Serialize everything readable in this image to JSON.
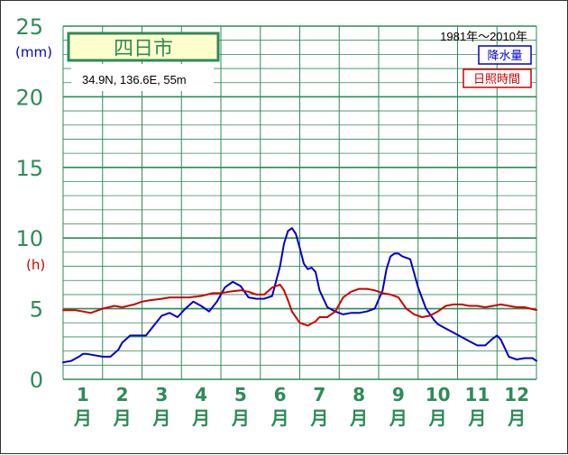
{
  "chart_data": {
    "type": "line",
    "title": "四日市",
    "location": "34.9N,   136.6E,   55m",
    "period": "1981年〜2010年",
    "y_unit_precip": "(mm)",
    "y_unit_sun": "(h)",
    "ylim": [
      0,
      25
    ],
    "y_ticks": [
      "0",
      "5",
      "10",
      "15",
      "20",
      "25"
    ],
    "x_ticks": [
      {
        "num": "1",
        "unit": "月"
      },
      {
        "num": "2",
        "unit": "月"
      },
      {
        "num": "3",
        "unit": "月"
      },
      {
        "num": "4",
        "unit": "月"
      },
      {
        "num": "5",
        "unit": "月"
      },
      {
        "num": "6",
        "unit": "月"
      },
      {
        "num": "7",
        "unit": "月"
      },
      {
        "num": "8",
        "unit": "月"
      },
      {
        "num": "9",
        "unit": "月"
      },
      {
        "num": "10",
        "unit": "月"
      },
      {
        "num": "11",
        "unit": "月"
      },
      {
        "num": "12",
        "unit": "月"
      }
    ],
    "x_range": [
      0.5,
      12.5
    ],
    "grid": true,
    "legend_position": "top-right",
    "series": [
      {
        "name": "降水量",
        "color": "#0000cc",
        "x": [
          0.5,
          0.7,
          0.9,
          1.0,
          1.1,
          1.3,
          1.5,
          1.7,
          1.9,
          2.0,
          2.2,
          2.4,
          2.6,
          2.8,
          3.0,
          3.2,
          3.4,
          3.6,
          3.8,
          4.0,
          4.2,
          4.4,
          4.6,
          4.8,
          5.0,
          5.2,
          5.4,
          5.6,
          5.8,
          6.0,
          6.1,
          6.2,
          6.3,
          6.4,
          6.5,
          6.6,
          6.7,
          6.8,
          6.9,
          7.0,
          7.2,
          7.4,
          7.6,
          7.8,
          8.0,
          8.2,
          8.4,
          8.6,
          8.7,
          8.8,
          8.9,
          9.0,
          9.1,
          9.3,
          9.5,
          9.7,
          9.9,
          10.0,
          10.2,
          10.4,
          10.6,
          10.8,
          11.0,
          11.2,
          11.4,
          11.5,
          11.6,
          11.7,
          11.8,
          12.0,
          12.2,
          12.4,
          12.5
        ],
        "values": [
          1.2,
          1.3,
          1.6,
          1.8,
          1.8,
          1.7,
          1.6,
          1.6,
          2.1,
          2.6,
          3.1,
          3.1,
          3.1,
          3.8,
          4.5,
          4.7,
          4.4,
          5.0,
          5.5,
          5.2,
          4.8,
          5.5,
          6.5,
          6.9,
          6.6,
          5.8,
          5.7,
          5.7,
          5.9,
          8.0,
          9.6,
          10.5,
          10.7,
          10.3,
          9.3,
          8.2,
          7.8,
          7.9,
          7.6,
          6.3,
          5.1,
          4.8,
          4.6,
          4.7,
          4.7,
          4.8,
          5.0,
          6.3,
          7.8,
          8.7,
          8.9,
          8.9,
          8.7,
          8.5,
          6.5,
          5.0,
          4.2,
          3.9,
          3.6,
          3.3,
          3.0,
          2.7,
          2.4,
          2.4,
          2.9,
          3.1,
          2.8,
          2.2,
          1.6,
          1.4,
          1.5,
          1.5,
          1.3
        ]
      },
      {
        "name": "日照時間",
        "color": "#cc0000",
        "x": [
          0.5,
          0.8,
          1.0,
          1.2,
          1.5,
          1.8,
          2.0,
          2.3,
          2.5,
          2.7,
          3.0,
          3.2,
          3.5,
          3.7,
          4.0,
          4.3,
          4.5,
          4.7,
          5.0,
          5.2,
          5.4,
          5.6,
          5.8,
          6.0,
          6.1,
          6.2,
          6.3,
          6.5,
          6.7,
          6.9,
          7.0,
          7.2,
          7.4,
          7.6,
          7.8,
          8.0,
          8.2,
          8.4,
          8.6,
          8.8,
          9.0,
          9.2,
          9.4,
          9.6,
          9.8,
          10.0,
          10.2,
          10.4,
          10.6,
          10.8,
          11.0,
          11.2,
          11.4,
          11.6,
          11.8,
          12.0,
          12.2,
          12.5
        ],
        "values": [
          4.9,
          4.9,
          4.8,
          4.7,
          5.0,
          5.2,
          5.1,
          5.3,
          5.5,
          5.6,
          5.7,
          5.8,
          5.8,
          5.8,
          5.9,
          6.1,
          6.1,
          6.2,
          6.3,
          6.2,
          6.0,
          6.0,
          6.5,
          6.7,
          6.3,
          5.6,
          4.8,
          4.0,
          3.8,
          4.1,
          4.4,
          4.4,
          4.8,
          5.8,
          6.2,
          6.4,
          6.4,
          6.3,
          6.1,
          6.0,
          5.8,
          5.0,
          4.6,
          4.4,
          4.5,
          4.8,
          5.2,
          5.3,
          5.3,
          5.2,
          5.2,
          5.1,
          5.2,
          5.3,
          5.2,
          5.1,
          5.1,
          4.9
        ]
      }
    ]
  }
}
